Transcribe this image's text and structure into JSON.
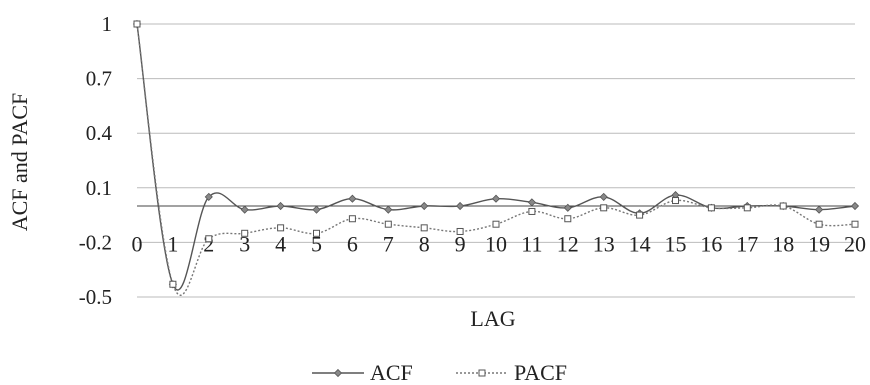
{
  "chart_data": {
    "type": "line",
    "title": "",
    "xlabel": "LAG",
    "ylabel": "ACF and PACF",
    "x": [
      0,
      1,
      2,
      3,
      4,
      5,
      6,
      7,
      8,
      9,
      10,
      11,
      12,
      13,
      14,
      15,
      16,
      17,
      18,
      19,
      20
    ],
    "x_tick_labels": [
      "0",
      "1",
      "2",
      "3",
      "4",
      "5",
      "6",
      "7",
      "8",
      "9",
      "10",
      "11",
      "12",
      "13",
      "14",
      "15",
      "16",
      "17",
      "18",
      "19",
      "20"
    ],
    "y_ticks": [
      1,
      0.7,
      0.4,
      0.1,
      -0.2,
      -0.5
    ],
    "y_tick_labels": [
      "1",
      "0.7",
      "0.4",
      "0.1",
      "-0.2",
      "-0.5"
    ],
    "ylim": [
      -0.5,
      1
    ],
    "grid": "horizontal",
    "legend_position": "bottom",
    "series": [
      {
        "name": "ACF",
        "line_style": "solid",
        "marker": "diamond",
        "color": "#555555",
        "values": [
          1.0,
          -0.43,
          0.05,
          -0.02,
          0.0,
          -0.02,
          0.04,
          -0.02,
          0.0,
          0.0,
          0.04,
          0.02,
          -0.01,
          0.05,
          -0.04,
          0.06,
          -0.01,
          0.0,
          0.0,
          -0.02,
          0.0
        ]
      },
      {
        "name": "PACF",
        "line_style": "dotted",
        "marker": "square",
        "color": "#777777",
        "values": [
          1.0,
          -0.43,
          -0.18,
          -0.15,
          -0.12,
          -0.15,
          -0.07,
          -0.1,
          -0.12,
          -0.14,
          -0.1,
          -0.03,
          -0.07,
          -0.01,
          -0.05,
          0.03,
          -0.01,
          -0.01,
          0.0,
          -0.1,
          -0.1
        ]
      }
    ]
  }
}
